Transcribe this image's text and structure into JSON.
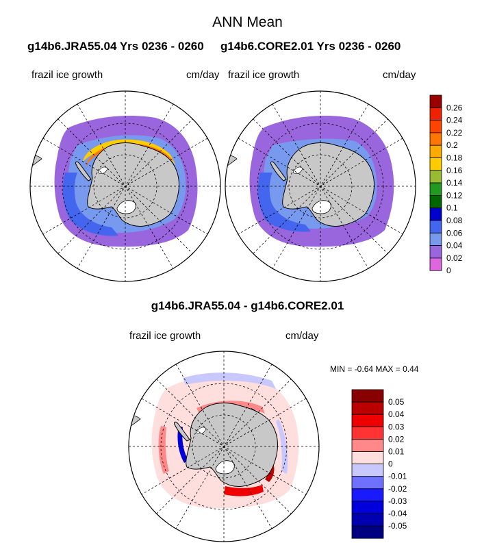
{
  "figure": {
    "title": "ANN Mean",
    "case_a_title": "g14b6.JRA55.04  Yrs 0236 - 0260",
    "case_b_title": "g14b6.CORE2.01  Yrs 0236 - 0260",
    "diff_title": "g14b6.JRA55.04 - g14b6.CORE2.01"
  },
  "panels": {
    "a": {
      "variable": "frazil ice growth",
      "units": "cm/day"
    },
    "b": {
      "variable": "frazil ice growth",
      "units": "cm/day"
    },
    "diff": {
      "variable": "frazil ice growth",
      "units": "cm/day",
      "min_label": "MIN =",
      "min_value": "-0.64",
      "max_label": "MAX =",
      "max_value": "0.44"
    }
  },
  "chart_data": [
    {
      "type": "heatmap",
      "panel": "a",
      "projection": "south polar stereographic",
      "colorbar_levels": [
        "0",
        "0.02",
        "0.04",
        "0.06",
        "0.08",
        "0.1",
        "0.12",
        "0.14",
        "0.16",
        "0.18",
        "0.2",
        "0.22",
        "0.24",
        "0.26"
      ],
      "colorbar_colors": [
        "#e066e0",
        "#9966dd",
        "#7799ee",
        "#4466ee",
        "#0000cc",
        "#006600",
        "#229922",
        "#99bb33",
        "#ffcc00",
        "#ffaa00",
        "#ff7700",
        "#ff4400",
        "#ee2200",
        "#990000"
      ]
    },
    {
      "type": "heatmap",
      "panel": "b",
      "projection": "south polar stereographic",
      "colorbar": "shared with panel a"
    },
    {
      "type": "heatmap",
      "panel": "diff",
      "projection": "south polar stereographic",
      "colorbar_levels": [
        "-0.05",
        "-0.04",
        "-0.03",
        "-0.02",
        "-0.01",
        "0",
        "0.01",
        "0.02",
        "0.03",
        "0.04",
        "0.05"
      ],
      "colorbar_colors": [
        "#000080",
        "#0000b0",
        "#0000dd",
        "#1a1aff",
        "#7070ff",
        "#c8c8ff",
        "#ffdede",
        "#ff8888",
        "#ff3333",
        "#ee0000",
        "#bb0000",
        "#880000"
      ]
    }
  ]
}
